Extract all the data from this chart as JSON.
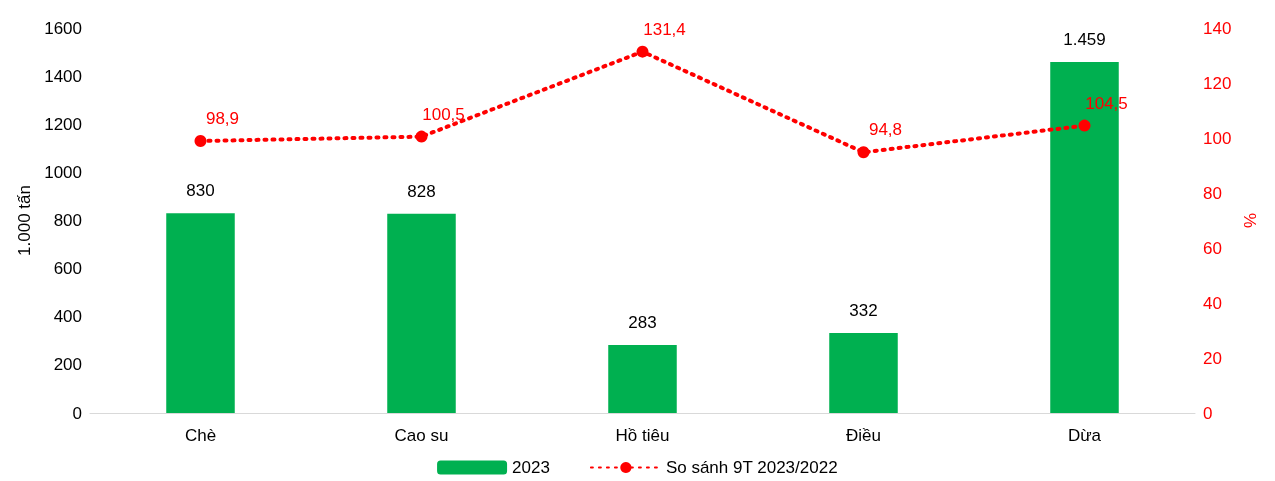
{
  "chart_data": {
    "type": "bar",
    "categories": [
      "Chè",
      "Cao su",
      "Hồ tiêu",
      "Điều",
      "Dừa"
    ],
    "ylabel": "1.000 tấn",
    "y2label": "%",
    "ylim": [
      0,
      1600
    ],
    "yticks": [
      0,
      200,
      400,
      600,
      800,
      1000,
      1200,
      1400,
      1600
    ],
    "y2lim": [
      0,
      140
    ],
    "y2ticks": [
      0,
      20,
      40,
      60,
      80,
      100,
      120,
      140
    ],
    "series": [
      {
        "name": "2023",
        "color": "#00b050",
        "values": [
          830,
          828,
          283,
          332,
          1459
        ],
        "value_labels": [
          "830",
          "828",
          "283",
          "332",
          "1.459"
        ]
      },
      {
        "name": "So sánh 9T 2023/2022",
        "type": "line",
        "axis": "y2",
        "color": "#ff0000",
        "marker": "circle",
        "line_style": "dotted",
        "values": [
          98.9,
          100.5,
          131.4,
          94.8,
          104.5
        ],
        "value_labels": [
          "98,9",
          "100,5",
          "131,4",
          "94,8",
          "104,5"
        ]
      }
    ],
    "grid": false,
    "legend": "bottom"
  }
}
